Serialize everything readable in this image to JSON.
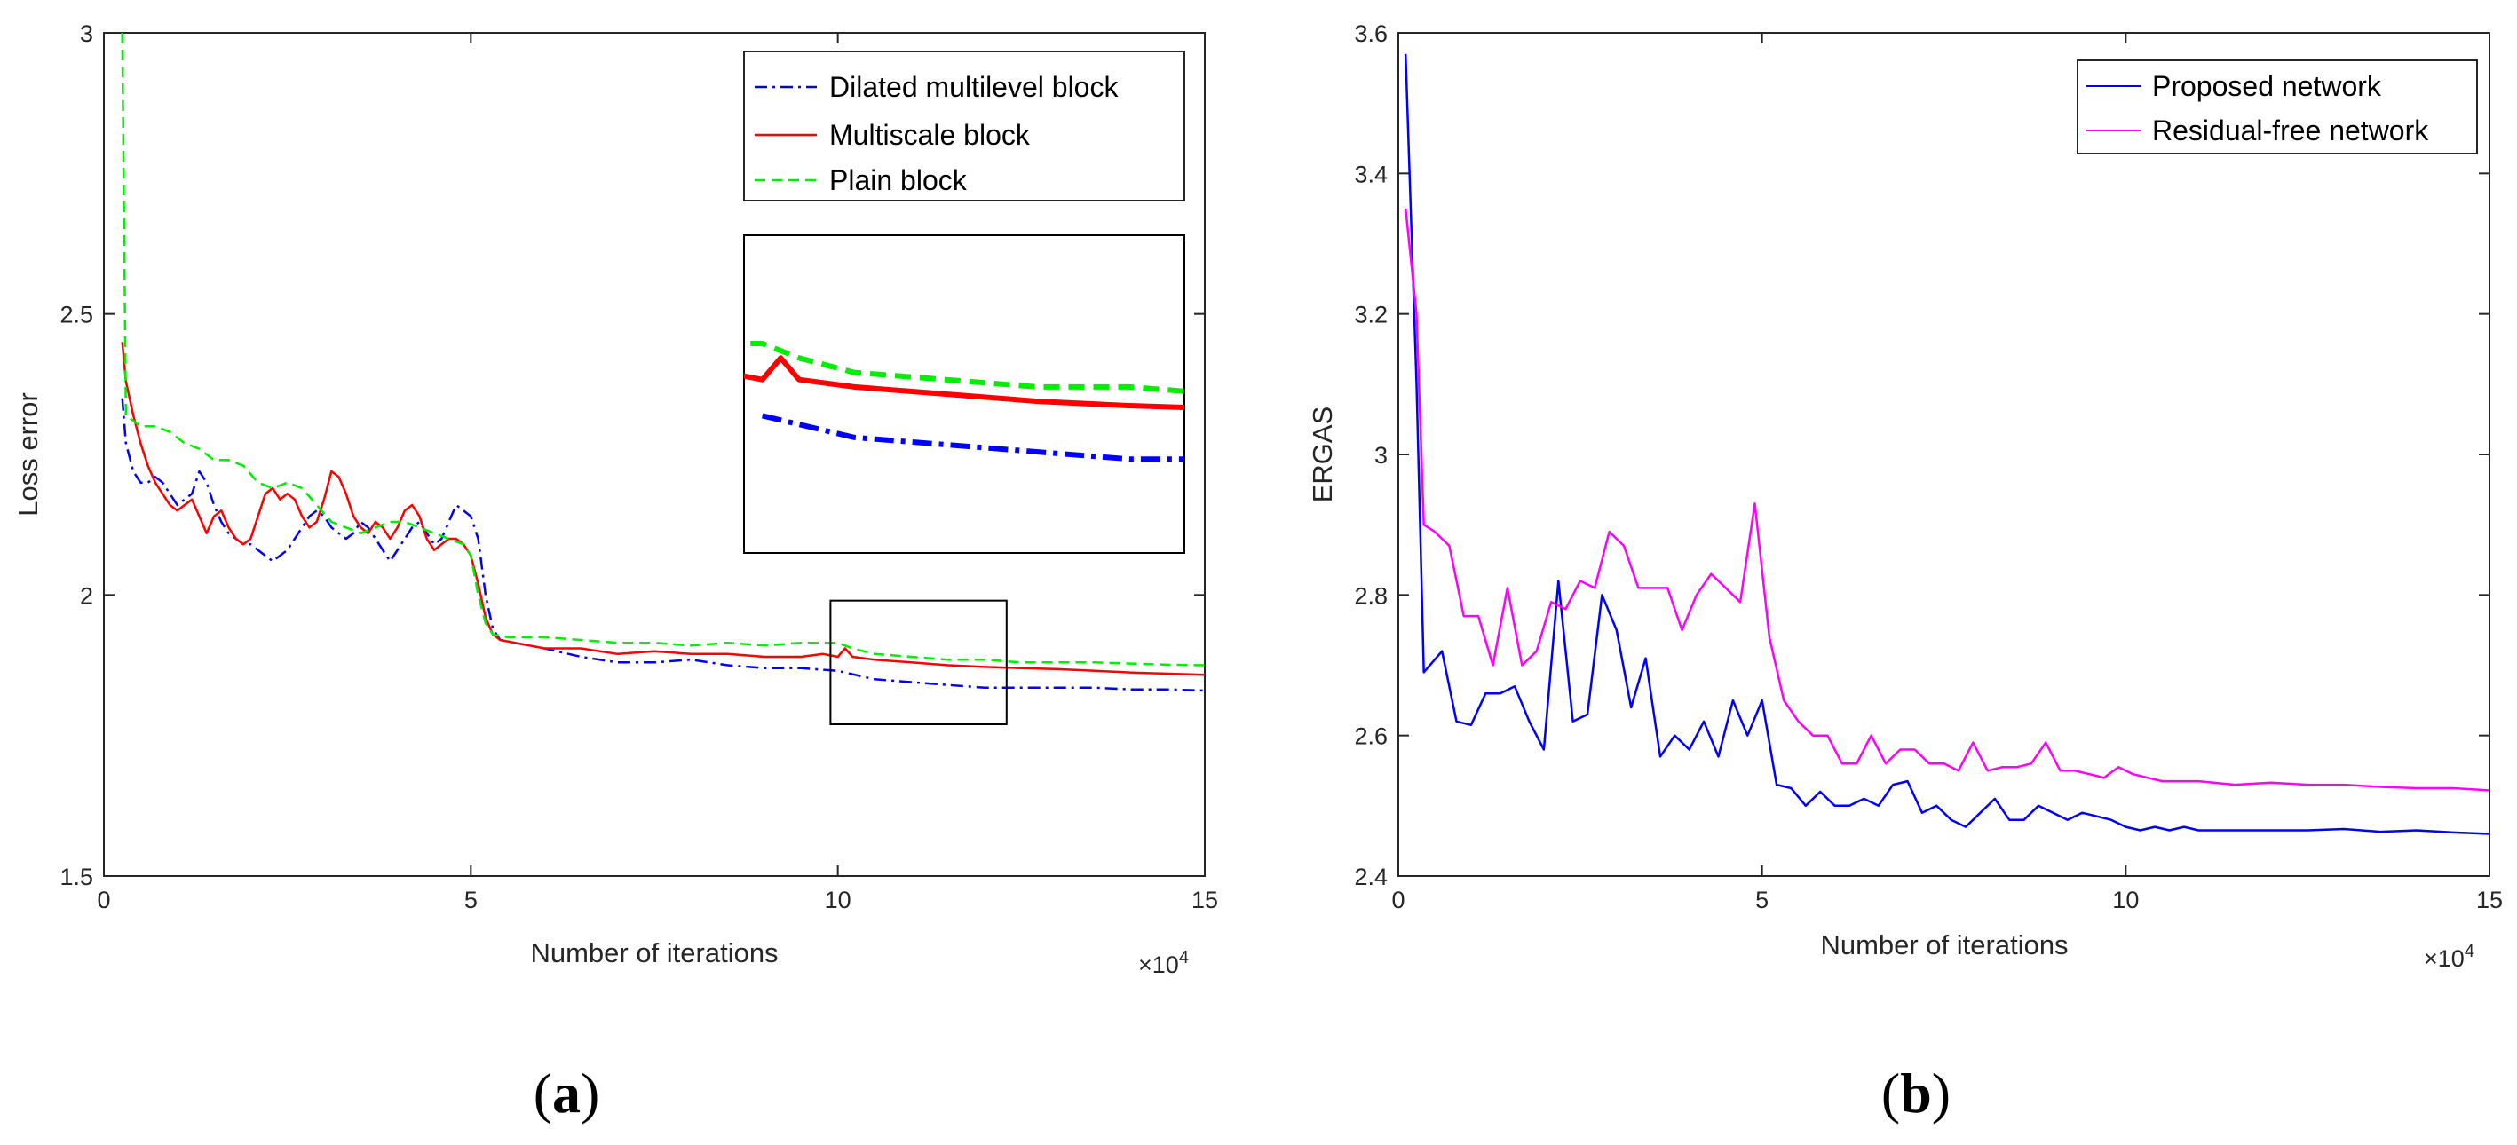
{
  "panels": [
    {
      "id": "a",
      "caption_label": "a",
      "zoom_inset": true
    },
    {
      "id": "b",
      "caption_label": "b",
      "zoom_inset": false
    }
  ],
  "chart_data": [
    {
      "type": "line",
      "xlabel": "Number of iterations",
      "ylabel": "Loss error",
      "x_multiplier": "×10",
      "x_multiplier_exp": "4",
      "xlim": [
        0,
        15
      ],
      "ylim": [
        1.5,
        3.0
      ],
      "xticks": [
        0,
        5,
        10,
        15
      ],
      "yticks": [
        1.5,
        2,
        2.5,
        3
      ],
      "ytick_labels": [
        "1.5",
        "2",
        "2.5",
        "3"
      ],
      "legend_position": "top-right",
      "zoom_region": {
        "x": [
          9.9,
          12.3
        ],
        "y": [
          1.77,
          1.99
        ]
      },
      "series": [
        {
          "name": "Dilated multilevel block",
          "color": "#0000ff",
          "style": "dashdot",
          "x": [
            0.25,
            0.3,
            0.4,
            0.5,
            0.6,
            0.7,
            0.8,
            0.9,
            1.0,
            1.1,
            1.2,
            1.3,
            1.4,
            1.5,
            1.6,
            1.7,
            1.8,
            1.9,
            2.0,
            2.1,
            2.2,
            2.3,
            2.4,
            2.5,
            2.6,
            2.7,
            2.8,
            2.9,
            3.0,
            3.1,
            3.2,
            3.3,
            3.4,
            3.5,
            3.6,
            3.7,
            3.8,
            3.9,
            4.0,
            4.1,
            4.2,
            4.3,
            4.4,
            4.5,
            4.6,
            4.7,
            4.8,
            4.9,
            5.0,
            5.1,
            5.2,
            5.3,
            5.4,
            5.6,
            5.8,
            6.0,
            6.5,
            7.0,
            7.5,
            8.0,
            8.5,
            9.0,
            9.5,
            10.0,
            10.5,
            11.0,
            11.5,
            12.0,
            12.5,
            13.0,
            13.5,
            14.0,
            14.5,
            15.0
          ],
          "y": [
            2.35,
            2.27,
            2.22,
            2.2,
            2.2,
            2.21,
            2.2,
            2.18,
            2.16,
            2.17,
            2.18,
            2.22,
            2.2,
            2.16,
            2.13,
            2.11,
            2.1,
            2.09,
            2.09,
            2.08,
            2.07,
            2.06,
            2.07,
            2.08,
            2.1,
            2.12,
            2.14,
            2.15,
            2.14,
            2.12,
            2.11,
            2.1,
            2.11,
            2.13,
            2.12,
            2.1,
            2.08,
            2.06,
            2.08,
            2.1,
            2.12,
            2.13,
            2.11,
            2.09,
            2.1,
            2.13,
            2.16,
            2.15,
            2.14,
            2.1,
            2.0,
            1.94,
            1.92,
            1.915,
            1.91,
            1.905,
            1.89,
            1.88,
            1.88,
            1.885,
            1.875,
            1.87,
            1.87,
            1.865,
            1.85,
            1.845,
            1.84,
            1.835,
            1.835,
            1.835,
            1.835,
            1.832,
            1.832,
            1.83
          ]
        },
        {
          "name": "Multiscale block",
          "color": "#ff0000",
          "style": "solid",
          "x": [
            0.25,
            0.3,
            0.4,
            0.5,
            0.6,
            0.7,
            0.8,
            0.9,
            1.0,
            1.1,
            1.2,
            1.3,
            1.4,
            1.5,
            1.6,
            1.7,
            1.8,
            1.9,
            2.0,
            2.1,
            2.2,
            2.3,
            2.4,
            2.5,
            2.6,
            2.7,
            2.8,
            2.9,
            3.0,
            3.1,
            3.2,
            3.3,
            3.4,
            3.5,
            3.6,
            3.7,
            3.8,
            3.9,
            4.0,
            4.1,
            4.2,
            4.3,
            4.4,
            4.5,
            4.6,
            4.7,
            4.8,
            4.9,
            5.0,
            5.1,
            5.2,
            5.3,
            5.4,
            5.6,
            5.8,
            6.0,
            6.5,
            7.0,
            7.5,
            8.0,
            8.5,
            9.0,
            9.5,
            9.8,
            10.0,
            10.1,
            10.2,
            10.5,
            11.0,
            11.5,
            12.0,
            12.5,
            13.0,
            13.5,
            14.0,
            14.5,
            15.0
          ],
          "y": [
            2.45,
            2.38,
            2.32,
            2.27,
            2.23,
            2.2,
            2.18,
            2.16,
            2.15,
            2.16,
            2.17,
            2.14,
            2.11,
            2.14,
            2.15,
            2.12,
            2.1,
            2.09,
            2.1,
            2.14,
            2.18,
            2.19,
            2.17,
            2.18,
            2.17,
            2.14,
            2.12,
            2.13,
            2.17,
            2.22,
            2.21,
            2.18,
            2.14,
            2.12,
            2.11,
            2.13,
            2.12,
            2.1,
            2.12,
            2.15,
            2.16,
            2.14,
            2.1,
            2.08,
            2.09,
            2.1,
            2.1,
            2.09,
            2.07,
            2.02,
            1.96,
            1.93,
            1.92,
            1.915,
            1.91,
            1.905,
            1.905,
            1.895,
            1.9,
            1.895,
            1.895,
            1.89,
            1.89,
            1.895,
            1.89,
            1.905,
            1.89,
            1.885,
            1.88,
            1.875,
            1.872,
            1.87,
            1.868,
            1.865,
            1.862,
            1.86,
            1.858
          ]
        },
        {
          "name": "Plain block",
          "color": "#00ee00",
          "style": "dashed",
          "x": [
            0.25,
            0.3,
            0.5,
            0.7,
            0.9,
            1.1,
            1.3,
            1.5,
            1.7,
            1.9,
            2.1,
            2.3,
            2.5,
            2.7,
            2.9,
            3.1,
            3.3,
            3.5,
            3.7,
            3.9,
            4.1,
            4.3,
            4.5,
            4.7,
            4.9,
            5.0,
            5.1,
            5.2,
            5.3,
            5.5,
            5.8,
            6.0,
            6.5,
            7.0,
            7.5,
            8.0,
            8.5,
            9.0,
            9.5,
            9.8,
            10.0,
            10.2,
            10.5,
            11.0,
            11.5,
            12.0,
            12.5,
            13.0,
            13.5,
            14.0,
            14.5,
            15.0
          ],
          "y": [
            3.0,
            2.32,
            2.3,
            2.3,
            2.29,
            2.27,
            2.26,
            2.24,
            2.24,
            2.23,
            2.2,
            2.19,
            2.2,
            2.19,
            2.16,
            2.13,
            2.12,
            2.11,
            2.12,
            2.13,
            2.13,
            2.12,
            2.11,
            2.1,
            2.09,
            2.07,
            2.0,
            1.95,
            1.93,
            1.925,
            1.925,
            1.925,
            1.92,
            1.915,
            1.915,
            1.91,
            1.915,
            1.91,
            1.915,
            1.915,
            1.915,
            1.905,
            1.895,
            1.89,
            1.885,
            1.885,
            1.88,
            1.88,
            1.88,
            1.878,
            1.876,
            1.875
          ]
        }
      ]
    },
    {
      "type": "line",
      "xlabel": "Number of iterations",
      "ylabel": "ERGAS",
      "x_multiplier": "×10",
      "x_multiplier_exp": "4",
      "xlim": [
        0,
        15
      ],
      "ylim": [
        2.4,
        3.6
      ],
      "xticks": [
        0,
        5,
        10,
        15
      ],
      "yticks": [
        2.4,
        2.6,
        2.8,
        3.0,
        3.2,
        3.4,
        3.6
      ],
      "ytick_labels": [
        "2.4",
        "2.6",
        "2.8",
        "3",
        "3.2",
        "3.4",
        "3.6"
      ],
      "legend_position": "top-right",
      "series": [
        {
          "name": "Proposed network",
          "color": "#0000ff",
          "style": "solid",
          "x": [
            0.1,
            0.25,
            0.35,
            0.6,
            0.8,
            1.0,
            1.2,
            1.4,
            1.6,
            1.8,
            2.0,
            2.2,
            2.4,
            2.6,
            2.8,
            3.0,
            3.2,
            3.4,
            3.6,
            3.8,
            4.0,
            4.2,
            4.4,
            4.6,
            4.8,
            5.0,
            5.2,
            5.4,
            5.6,
            5.8,
            6.0,
            6.2,
            6.4,
            6.6,
            6.8,
            7.0,
            7.2,
            7.4,
            7.6,
            7.8,
            8.0,
            8.2,
            8.4,
            8.6,
            8.8,
            9.0,
            9.2,
            9.4,
            9.6,
            9.8,
            10.0,
            10.2,
            10.4,
            10.6,
            10.8,
            11.0,
            11.5,
            12.0,
            12.5,
            13.0,
            13.5,
            14.0,
            14.5,
            15.0
          ],
          "y": [
            3.57,
            3.1,
            2.69,
            2.72,
            2.62,
            2.615,
            2.66,
            2.66,
            2.67,
            2.62,
            2.58,
            2.82,
            2.62,
            2.63,
            2.8,
            2.75,
            2.64,
            2.71,
            2.57,
            2.6,
            2.58,
            2.62,
            2.57,
            2.65,
            2.6,
            2.65,
            2.53,
            2.525,
            2.5,
            2.52,
            2.5,
            2.5,
            2.51,
            2.5,
            2.53,
            2.535,
            2.49,
            2.5,
            2.48,
            2.47,
            2.49,
            2.51,
            2.48,
            2.48,
            2.5,
            2.49,
            2.48,
            2.49,
            2.485,
            2.48,
            2.47,
            2.465,
            2.47,
            2.465,
            2.47,
            2.465,
            2.465,
            2.465,
            2.465,
            2.467,
            2.463,
            2.465,
            2.462,
            2.46
          ]
        },
        {
          "name": "Residual-free network",
          "color": "#ff00ff",
          "style": "solid",
          "x": [
            0.1,
            0.25,
            0.35,
            0.5,
            0.7,
            0.9,
            1.1,
            1.3,
            1.5,
            1.7,
            1.9,
            2.1,
            2.3,
            2.5,
            2.7,
            2.9,
            3.1,
            3.3,
            3.5,
            3.7,
            3.9,
            4.1,
            4.3,
            4.5,
            4.7,
            4.9,
            5.1,
            5.3,
            5.5,
            5.7,
            5.9,
            6.1,
            6.3,
            6.5,
            6.7,
            6.9,
            7.1,
            7.3,
            7.5,
            7.7,
            7.9,
            8.1,
            8.3,
            8.5,
            8.7,
            8.9,
            9.1,
            9.3,
            9.5,
            9.7,
            9.9,
            10.1,
            10.5,
            11.0,
            11.5,
            12.0,
            12.5,
            13.0,
            13.5,
            14.0,
            14.5,
            15.0
          ],
          "y": [
            3.35,
            3.2,
            2.9,
            2.89,
            2.87,
            2.77,
            2.77,
            2.7,
            2.81,
            2.7,
            2.72,
            2.79,
            2.78,
            2.82,
            2.81,
            2.89,
            2.87,
            2.81,
            2.81,
            2.81,
            2.75,
            2.8,
            2.83,
            2.81,
            2.79,
            2.93,
            2.74,
            2.65,
            2.62,
            2.6,
            2.6,
            2.56,
            2.56,
            2.6,
            2.56,
            2.58,
            2.58,
            2.56,
            2.56,
            2.55,
            2.59,
            2.55,
            2.555,
            2.555,
            2.56,
            2.59,
            2.55,
            2.55,
            2.545,
            2.54,
            2.555,
            2.545,
            2.535,
            2.535,
            2.53,
            2.533,
            2.53,
            2.53,
            2.527,
            2.525,
            2.525,
            2.522
          ]
        }
      ]
    }
  ]
}
